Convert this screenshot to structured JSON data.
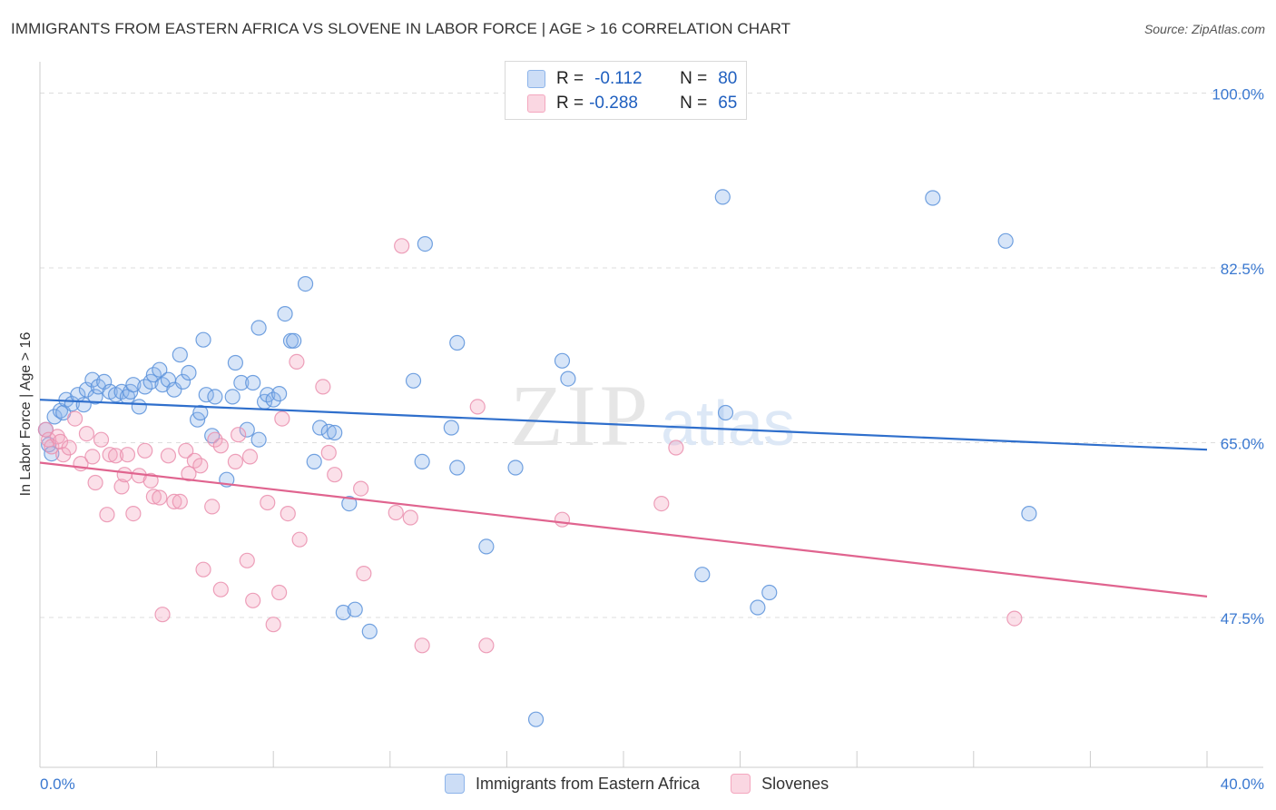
{
  "title": "IMMIGRANTS FROM EASTERN AFRICA VS SLOVENE IN LABOR FORCE | AGE > 16 CORRELATION CHART",
  "source": "Source: ZipAtlas.com",
  "watermark": {
    "zip": "ZIP",
    "atlas": "atlas"
  },
  "legend": {
    "rows": [
      {
        "r_label": "R =",
        "r_value": "-0.112",
        "n_label": "N =",
        "n_value": "80",
        "color": "#8db4ea"
      },
      {
        "r_label": "R =",
        "r_value": "-0.288",
        "n_label": "N =",
        "n_value": "65",
        "color": "#f4a7bf"
      }
    ]
  },
  "bottom_legend": [
    {
      "label": "Immigrants from Eastern Africa",
      "color": "#8db4ea"
    },
    {
      "label": "Slovenes",
      "color": "#f4a7bf"
    }
  ],
  "colors": {
    "blue": "#5b92db",
    "blue_fill": "rgba(141,180,234,0.35)",
    "blue_line": "#2f6fcc",
    "pink": "#ea8fae",
    "pink_fill": "rgba(244,167,191,0.35)",
    "pink_line": "#e0648f",
    "axis_text": "#3a78d0",
    "grid": "#dddddd"
  },
  "chart_data": {
    "type": "scatter",
    "xlabel": "",
    "ylabel": "In Labor Force | Age > 16",
    "xlim": [
      0,
      40
    ],
    "ylim": [
      32.5,
      102.5
    ],
    "x_tick_labels": [
      {
        "value": 0,
        "label": "0.0%"
      },
      {
        "value": 40,
        "label": "40.0%"
      }
    ],
    "y_tick_labels": [
      {
        "value": 100,
        "label": "100.0%"
      },
      {
        "value": 82.5,
        "label": "82.5%"
      },
      {
        "value": 65,
        "label": "65.0%"
      },
      {
        "value": 47.5,
        "label": "47.5%"
      }
    ],
    "y_gridlines": [
      100,
      82.5,
      65,
      47.5
    ],
    "series": [
      {
        "name": "Immigrants from Eastern Africa",
        "trend": {
          "x": [
            0,
            40
          ],
          "y": [
            69.3,
            64.3
          ]
        },
        "points": [
          [
            0.2,
            66.3
          ],
          [
            0.3,
            64.8
          ],
          [
            0.4,
            63.9
          ],
          [
            0.5,
            67.6
          ],
          [
            0.7,
            68.2
          ],
          [
            0.8,
            68.0
          ],
          [
            0.9,
            69.3
          ],
          [
            1.1,
            68.9
          ],
          [
            1.3,
            69.8
          ],
          [
            1.5,
            68.8
          ],
          [
            1.6,
            70.3
          ],
          [
            1.8,
            71.3
          ],
          [
            1.9,
            69.6
          ],
          [
            2.0,
            70.6
          ],
          [
            2.2,
            71.1
          ],
          [
            2.4,
            70.1
          ],
          [
            2.6,
            69.8
          ],
          [
            2.8,
            70.1
          ],
          [
            3.0,
            69.6
          ],
          [
            3.1,
            70.1
          ],
          [
            3.2,
            70.8
          ],
          [
            3.4,
            68.6
          ],
          [
            3.6,
            70.6
          ],
          [
            3.8,
            71.1
          ],
          [
            3.9,
            71.8
          ],
          [
            4.1,
            72.3
          ],
          [
            4.2,
            70.8
          ],
          [
            4.4,
            71.3
          ],
          [
            4.6,
            70.3
          ],
          [
            4.8,
            73.8
          ],
          [
            4.9,
            71.1
          ],
          [
            5.1,
            72.0
          ],
          [
            5.4,
            67.3
          ],
          [
            5.5,
            68.0
          ],
          [
            5.6,
            75.3
          ],
          [
            5.7,
            69.8
          ],
          [
            5.9,
            65.7
          ],
          [
            6.0,
            69.6
          ],
          [
            6.4,
            61.3
          ],
          [
            6.6,
            69.6
          ],
          [
            6.7,
            73.0
          ],
          [
            6.9,
            71.0
          ],
          [
            7.1,
            66.3
          ],
          [
            7.3,
            71.0
          ],
          [
            7.5,
            65.3
          ],
          [
            7.5,
            76.5
          ],
          [
            7.7,
            69.1
          ],
          [
            7.8,
            69.8
          ],
          [
            8.0,
            69.3
          ],
          [
            8.2,
            69.9
          ],
          [
            8.4,
            77.9
          ],
          [
            8.6,
            75.2
          ],
          [
            8.7,
            75.2
          ],
          [
            9.1,
            80.9
          ],
          [
            9.4,
            63.1
          ],
          [
            9.6,
            66.5
          ],
          [
            9.9,
            66.1
          ],
          [
            10.1,
            66.0
          ],
          [
            10.6,
            58.9
          ],
          [
            10.4,
            48.0
          ],
          [
            10.8,
            48.3
          ],
          [
            11.3,
            46.1
          ],
          [
            12.8,
            71.2
          ],
          [
            13.1,
            63.1
          ],
          [
            13.2,
            84.9
          ],
          [
            14.1,
            66.5
          ],
          [
            14.3,
            62.5
          ],
          [
            14.3,
            75.0
          ],
          [
            15.3,
            54.6
          ],
          [
            16.3,
            62.5
          ],
          [
            17.0,
            37.3
          ],
          [
            17.9,
            73.2
          ],
          [
            18.1,
            71.4
          ],
          [
            22.7,
            51.8
          ],
          [
            23.4,
            89.6
          ],
          [
            23.5,
            68.0
          ],
          [
            24.6,
            48.5
          ],
          [
            25.0,
            50.0
          ],
          [
            30.6,
            89.5
          ],
          [
            33.1,
            85.2
          ],
          [
            33.9,
            57.9
          ]
        ]
      },
      {
        "name": "Slovenes",
        "trend": {
          "x": [
            0,
            40
          ],
          "y": [
            63.0,
            49.6
          ]
        },
        "points": [
          [
            0.2,
            66.3
          ],
          [
            0.3,
            65.3
          ],
          [
            0.4,
            64.6
          ],
          [
            0.6,
            65.6
          ],
          [
            0.7,
            65.1
          ],
          [
            0.8,
            63.8
          ],
          [
            1.0,
            64.5
          ],
          [
            1.2,
            67.4
          ],
          [
            1.4,
            62.9
          ],
          [
            1.6,
            65.9
          ],
          [
            1.8,
            63.6
          ],
          [
            1.9,
            61.0
          ],
          [
            2.1,
            65.3
          ],
          [
            2.3,
            57.8
          ],
          [
            2.4,
            63.8
          ],
          [
            2.6,
            63.7
          ],
          [
            2.8,
            60.6
          ],
          [
            2.9,
            61.8
          ],
          [
            3.0,
            63.8
          ],
          [
            3.2,
            57.9
          ],
          [
            3.4,
            61.7
          ],
          [
            3.6,
            64.2
          ],
          [
            3.8,
            61.2
          ],
          [
            3.9,
            59.6
          ],
          [
            4.1,
            59.5
          ],
          [
            4.2,
            47.8
          ],
          [
            4.4,
            63.7
          ],
          [
            4.6,
            59.1
          ],
          [
            4.8,
            59.1
          ],
          [
            5.0,
            64.2
          ],
          [
            5.1,
            61.9
          ],
          [
            5.3,
            63.2
          ],
          [
            5.5,
            62.7
          ],
          [
            5.6,
            52.3
          ],
          [
            5.9,
            58.6
          ],
          [
            6.0,
            65.3
          ],
          [
            6.2,
            64.7
          ],
          [
            6.2,
            50.3
          ],
          [
            6.7,
            63.1
          ],
          [
            6.8,
            65.8
          ],
          [
            7.1,
            53.2
          ],
          [
            7.2,
            63.6
          ],
          [
            7.3,
            49.2
          ],
          [
            7.8,
            59.0
          ],
          [
            8.0,
            46.8
          ],
          [
            8.2,
            50.0
          ],
          [
            8.3,
            67.4
          ],
          [
            8.5,
            57.9
          ],
          [
            8.8,
            73.1
          ],
          [
            8.9,
            55.3
          ],
          [
            9.7,
            70.6
          ],
          [
            9.9,
            64.0
          ],
          [
            10.1,
            61.8
          ],
          [
            11.0,
            60.4
          ],
          [
            11.1,
            51.9
          ],
          [
            12.2,
            58.0
          ],
          [
            12.4,
            84.7
          ],
          [
            12.7,
            57.5
          ],
          [
            13.1,
            44.7
          ],
          [
            15.0,
            68.6
          ],
          [
            15.3,
            44.7
          ],
          [
            17.9,
            57.3
          ],
          [
            21.3,
            58.9
          ],
          [
            21.8,
            64.5
          ],
          [
            33.4,
            47.4
          ]
        ]
      }
    ]
  }
}
